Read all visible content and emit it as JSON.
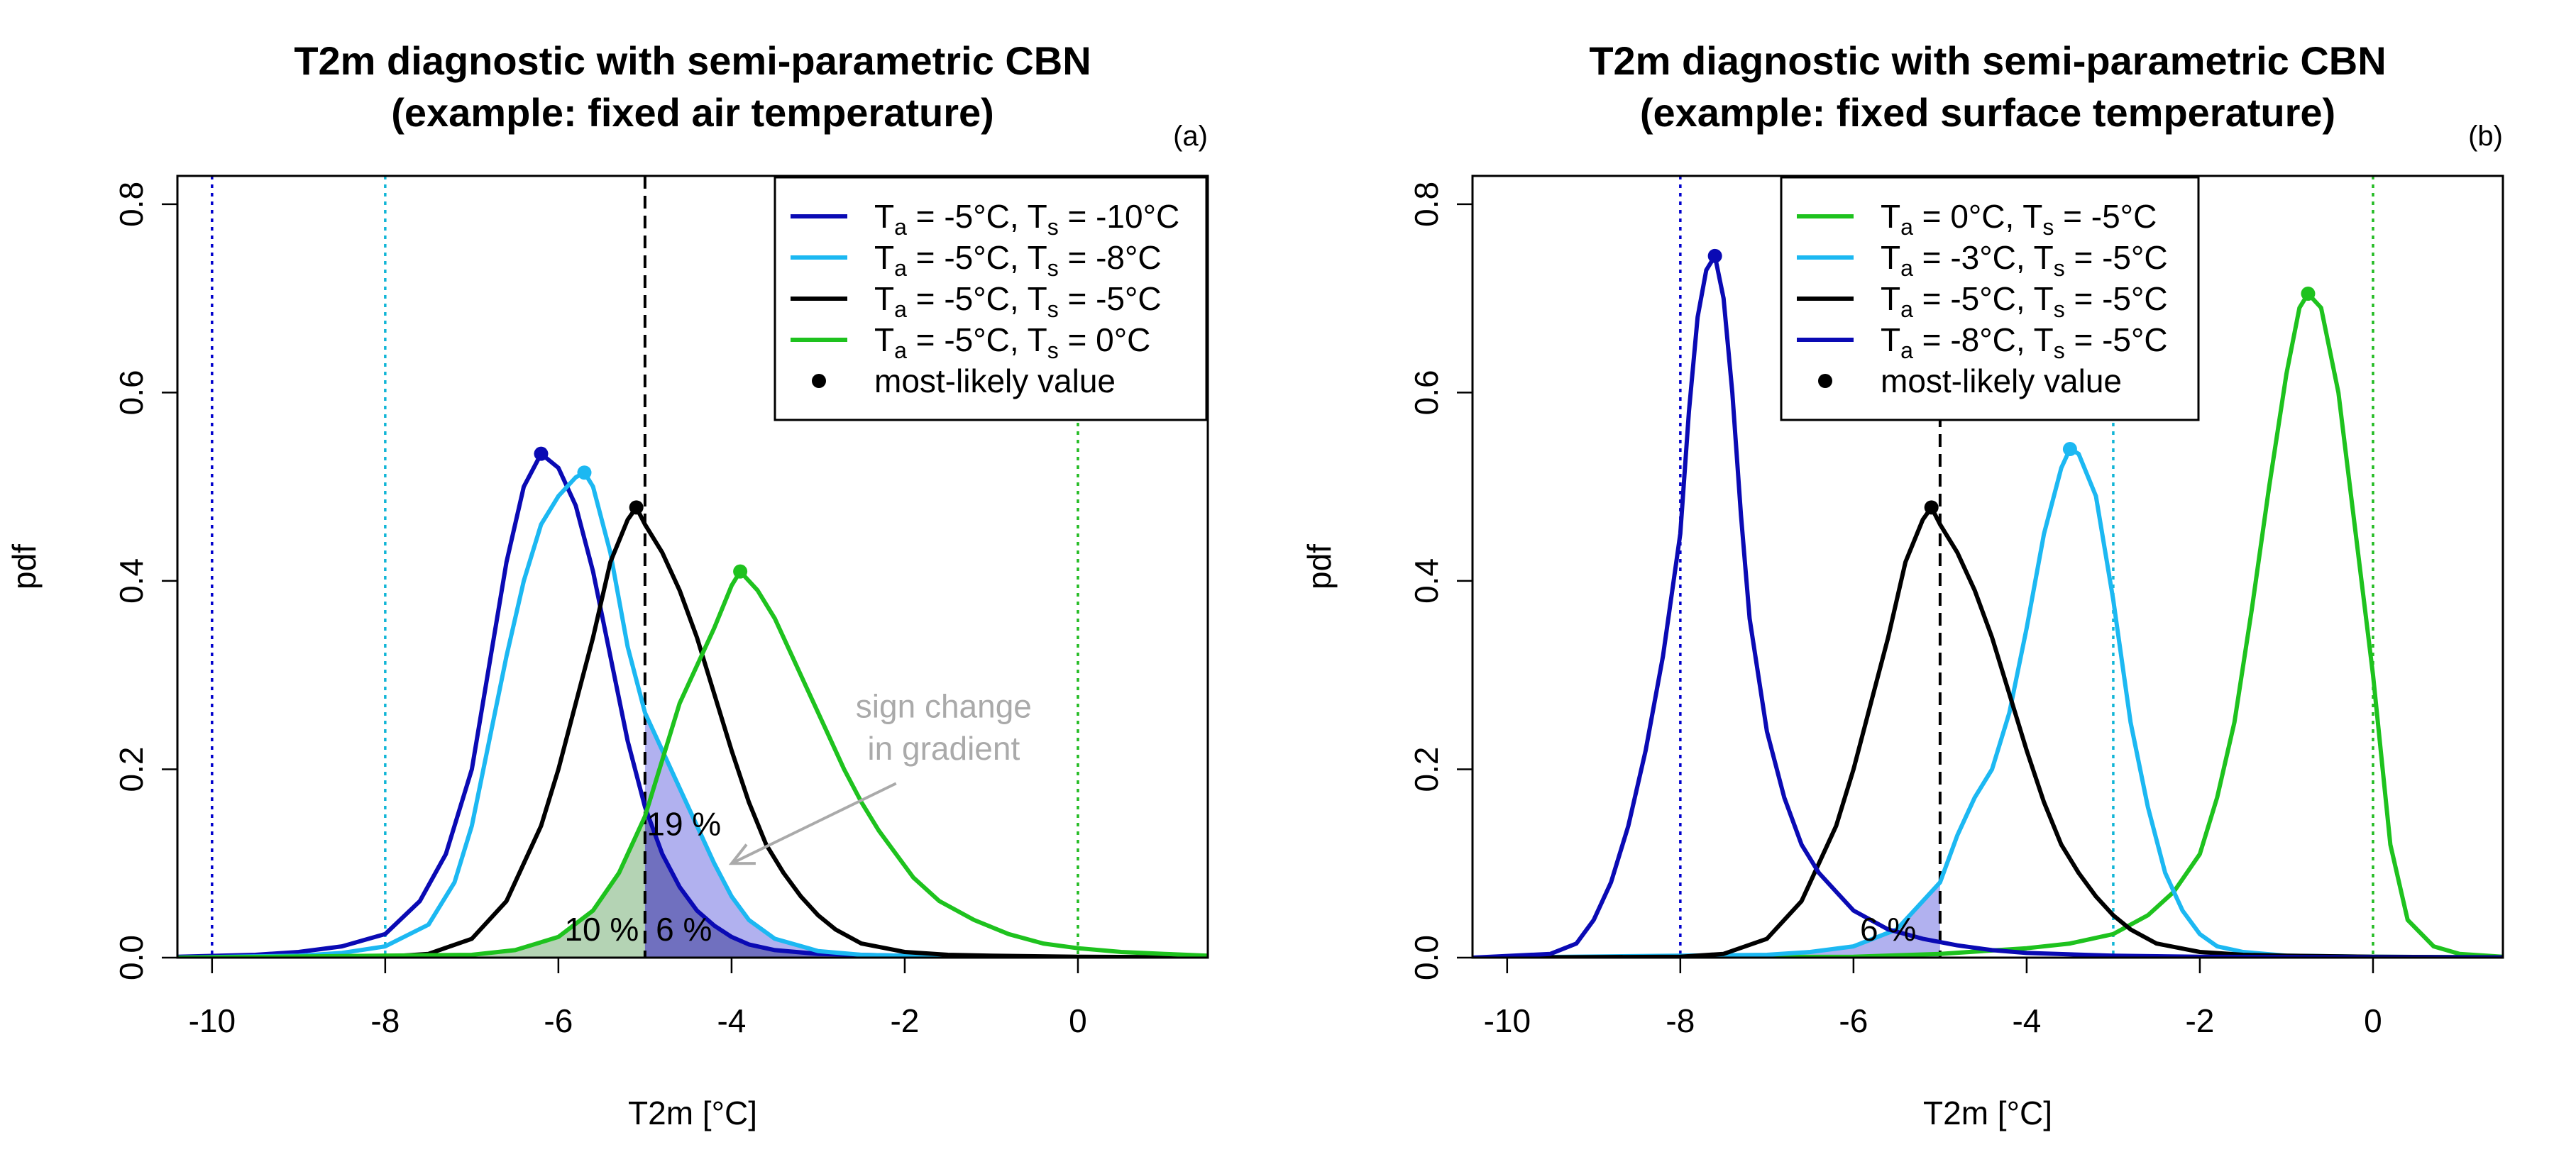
{
  "chart_data": [
    {
      "type": "line",
      "panel_label": "(a)",
      "title": "T2m diagnostic with semi-parametric CBN",
      "subtitle": "(example: fixed air temperature)",
      "xlabel": "T2m [°C]",
      "ylabel": "pdf",
      "xlim": [
        -10.4,
        1.5
      ],
      "ylim": [
        0,
        0.83
      ],
      "xticks": [
        -10,
        -8,
        -6,
        -4,
        -2,
        0
      ],
      "yticks": [
        0.0,
        0.2,
        0.4,
        0.6,
        0.8
      ],
      "xtick_labels": [
        "-10",
        "-8",
        "-6",
        "-4",
        "-2",
        "0"
      ],
      "ytick_labels": [
        "0.0",
        "0.2",
        "0.4",
        "0.6",
        "0.8"
      ],
      "vlines": [
        {
          "x": -10,
          "color": "#0000cc",
          "style": "dotted"
        },
        {
          "x": -8,
          "color": "#11b5d6",
          "style": "dotted"
        },
        {
          "x": -5,
          "color": "#000000",
          "style": "dashed"
        },
        {
          "x": 0,
          "color": "#22bb22",
          "style": "dotted"
        }
      ],
      "legend": [
        {
          "pre": "T",
          "sub1": "a",
          "mid": " = -5°C, T",
          "sub2": "s",
          "post": " = -10°C",
          "color": "#0a0ab4",
          "kind": "line"
        },
        {
          "pre": "T",
          "sub1": "a",
          "mid": " = -5°C, T",
          "sub2": "s",
          "post": " = -8°C",
          "color": "#1cb8f2",
          "kind": "line"
        },
        {
          "pre": "T",
          "sub1": "a",
          "mid": " = -5°C, T",
          "sub2": "s",
          "post": " = -5°C",
          "color": "#000000",
          "kind": "line"
        },
        {
          "pre": "T",
          "sub1": "a",
          "mid": " = -5°C, T",
          "sub2": "s",
          "post": " =  0°C",
          "color": "#1ec21e",
          "kind": "line"
        },
        {
          "text": "most-likely value",
          "color": "#000000",
          "kind": "point"
        }
      ],
      "series": [
        {
          "name": "Ta = -5°C, Ts = -10°C",
          "color": "#0a0ab4",
          "x": [
            -10.4,
            -9.5,
            -9,
            -8.5,
            -8,
            -7.6,
            -7.3,
            -7.0,
            -6.8,
            -6.6,
            -6.4,
            -6.2,
            -6.0,
            -5.8,
            -5.6,
            -5.4,
            -5.2,
            -5.0,
            -4.8,
            -4.6,
            -4.4,
            -4.2,
            -4.0,
            -3.8,
            -3.5,
            -3.0,
            -2.0,
            -1.0,
            0,
            1.5
          ],
          "y": [
            0.001,
            0.003,
            0.006,
            0.012,
            0.025,
            0.06,
            0.11,
            0.2,
            0.31,
            0.42,
            0.5,
            0.535,
            0.52,
            0.48,
            0.41,
            0.32,
            0.23,
            0.16,
            0.11,
            0.075,
            0.05,
            0.034,
            0.022,
            0.014,
            0.008,
            0.004,
            0.002,
            0.001,
            0.0005,
            0.0002
          ],
          "peak": [
            -6.2,
            0.535
          ]
        },
        {
          "name": "Ta = -5°C, Ts = -8°C",
          "color": "#1cb8f2",
          "x": [
            -10.4,
            -9,
            -8.5,
            -8,
            -7.5,
            -7.2,
            -7.0,
            -6.8,
            -6.6,
            -6.4,
            -6.2,
            -6.0,
            -5.8,
            -5.7,
            -5.6,
            -5.4,
            -5.2,
            -5.0,
            -4.8,
            -4.6,
            -4.4,
            -4.2,
            -4.0,
            -3.8,
            -3.5,
            -3.0,
            -2.5,
            -2.0,
            -1.0,
            0,
            1.5
          ],
          "y": [
            0,
            0.002,
            0.005,
            0.012,
            0.035,
            0.08,
            0.14,
            0.23,
            0.32,
            0.4,
            0.46,
            0.49,
            0.51,
            0.515,
            0.5,
            0.43,
            0.33,
            0.26,
            0.22,
            0.18,
            0.14,
            0.1,
            0.065,
            0.04,
            0.02,
            0.007,
            0.003,
            0.002,
            0.001,
            0.0005,
            0.0002
          ],
          "peak": [
            -5.7,
            0.515
          ]
        },
        {
          "name": "Ta = -5°C, Ts = -5°C",
          "color": "#000000",
          "x": [
            -10.4,
            -8,
            -7.5,
            -7.0,
            -6.6,
            -6.2,
            -6.0,
            -5.8,
            -5.6,
            -5.4,
            -5.2,
            -5.1,
            -5.0,
            -4.8,
            -4.6,
            -4.4,
            -4.2,
            -4.0,
            -3.8,
            -3.6,
            -3.4,
            -3.2,
            -3.0,
            -2.8,
            -2.5,
            -2.0,
            -1.5,
            -1.0,
            0,
            1.5
          ],
          "y": [
            0,
            0.001,
            0.004,
            0.02,
            0.06,
            0.14,
            0.2,
            0.27,
            0.34,
            0.42,
            0.465,
            0.478,
            0.46,
            0.43,
            0.39,
            0.34,
            0.28,
            0.22,
            0.165,
            0.12,
            0.09,
            0.065,
            0.045,
            0.03,
            0.015,
            0.006,
            0.003,
            0.002,
            0.001,
            0.0003
          ],
          "peak": [
            -5.1,
            0.478
          ]
        },
        {
          "name": "Ta = -5°C, Ts = 0°C",
          "color": "#1ec21e",
          "x": [
            -10.4,
            -7,
            -6.5,
            -6.0,
            -5.6,
            -5.3,
            -5.0,
            -4.8,
            -4.6,
            -4.4,
            -4.2,
            -4.0,
            -3.9,
            -3.7,
            -3.5,
            -3.3,
            -3.1,
            -2.9,
            -2.7,
            -2.5,
            -2.3,
            -2.1,
            -1.9,
            -1.6,
            -1.2,
            -0.8,
            -0.4,
            0,
            0.5,
            1.0,
            1.5
          ],
          "y": [
            0,
            0.003,
            0.008,
            0.022,
            0.05,
            0.09,
            0.15,
            0.21,
            0.27,
            0.31,
            0.35,
            0.395,
            0.41,
            0.39,
            0.36,
            0.32,
            0.28,
            0.24,
            0.2,
            0.165,
            0.135,
            0.11,
            0.085,
            0.06,
            0.04,
            0.025,
            0.015,
            0.01,
            0.006,
            0.004,
            0.002
          ],
          "peak": [
            -3.9,
            0.41
          ]
        }
      ],
      "shaded_regions": [
        {
          "series": "Ta = -5°C, Ts = 0°C",
          "from": -10.4,
          "to": -5,
          "color": "#6aa86a",
          "opacity": 0.5
        },
        {
          "series": "Ta = -5°C, Ts = -8°C",
          "from": -5,
          "to": 1.5,
          "color": "#6464e0",
          "opacity": 0.5
        },
        {
          "series": "Ta = -5°C, Ts = -10°C",
          "from": -5,
          "to": 1.5,
          "color": "#303090",
          "opacity": 0.5
        }
      ],
      "annotations": [
        {
          "text": "19 %",
          "x": -4.55,
          "y": 0.13
        },
        {
          "text": "10 %",
          "x": -5.5,
          "y": 0.018
        },
        {
          "text": "6 %",
          "x": -4.55,
          "y": 0.018
        },
        {
          "text": "sign change",
          "x": -1.55,
          "y": 0.255,
          "color": "#aaaaaa"
        },
        {
          "text": "in gradient",
          "x": -1.55,
          "y": 0.21,
          "color": "#aaaaaa"
        }
      ],
      "arrows": [
        {
          "from": [
            -2.1,
            0.185
          ],
          "to": [
            -4.0,
            0.1
          ],
          "color": "#aaaaaa"
        }
      ]
    },
    {
      "type": "line",
      "panel_label": "(b)",
      "title": "T2m diagnostic with semi-parametric CBN",
      "subtitle": "(example: fixed surface temperature)",
      "xlabel": "T2m [°C]",
      "ylabel": "pdf",
      "xlim": [
        -10.4,
        1.5
      ],
      "ylim": [
        0,
        0.83
      ],
      "xticks": [
        -10,
        -8,
        -6,
        -4,
        -2,
        0
      ],
      "yticks": [
        0.0,
        0.2,
        0.4,
        0.6,
        0.8
      ],
      "xtick_labels": [
        "-10",
        "-8",
        "-6",
        "-4",
        "-2",
        "0"
      ],
      "ytick_labels": [
        "0.0",
        "0.2",
        "0.4",
        "0.6",
        "0.8"
      ],
      "vlines": [
        {
          "x": -8,
          "color": "#0000cc",
          "style": "dotted"
        },
        {
          "x": -5,
          "color": "#000000",
          "style": "dashed"
        },
        {
          "x": -3,
          "color": "#11b5d6",
          "style": "dotted"
        },
        {
          "x": 0,
          "color": "#22bb22",
          "style": "dotted"
        }
      ],
      "legend": [
        {
          "pre": "T",
          "sub1": "a",
          "mid": " =  0°C, T",
          "sub2": "s",
          "post": " = -5°C",
          "color": "#1ec21e",
          "kind": "line"
        },
        {
          "pre": "T",
          "sub1": "a",
          "mid": " = -3°C, T",
          "sub2": "s",
          "post": " = -5°C",
          "color": "#1cb8f2",
          "kind": "line"
        },
        {
          "pre": "T",
          "sub1": "a",
          "mid": " = -5°C, T",
          "sub2": "s",
          "post": " = -5°C",
          "color": "#000000",
          "kind": "line"
        },
        {
          "pre": "T",
          "sub1": "a",
          "mid": " = -8°C, T",
          "sub2": "s",
          "post": " = -5°C",
          "color": "#0a0ab4",
          "kind": "line"
        },
        {
          "text": "most-likely value",
          "color": "#000000",
          "kind": "point"
        }
      ],
      "series": [
        {
          "name": "Ta = 0°C, Ts = -5°C",
          "color": "#1ec21e",
          "x": [
            -10.4,
            -6,
            -5,
            -4,
            -3.5,
            -3,
            -2.6,
            -2.3,
            -2.0,
            -1.8,
            -1.6,
            -1.4,
            -1.2,
            -1.0,
            -0.85,
            -0.75,
            -0.6,
            -0.4,
            -0.2,
            0,
            0.2,
            0.4,
            0.7,
            1.0,
            1.5
          ],
          "y": [
            0,
            0.001,
            0.004,
            0.01,
            0.015,
            0.025,
            0.045,
            0.07,
            0.11,
            0.17,
            0.25,
            0.37,
            0.5,
            0.62,
            0.69,
            0.705,
            0.69,
            0.6,
            0.45,
            0.3,
            0.12,
            0.04,
            0.012,
            0.004,
            0.001
          ],
          "peak": [
            -0.75,
            0.705
          ]
        },
        {
          "name": "Ta = -3°C, Ts = -5°C",
          "color": "#1cb8f2",
          "x": [
            -10.4,
            -7,
            -6.5,
            -6.0,
            -5.5,
            -5.0,
            -4.8,
            -4.6,
            -4.4,
            -4.2,
            -4.0,
            -3.8,
            -3.6,
            -3.5,
            -3.4,
            -3.2,
            -3.0,
            -2.8,
            -2.6,
            -2.4,
            -2.2,
            -2.0,
            -1.8,
            -1.5,
            -1.0,
            0,
            1.5
          ],
          "y": [
            0,
            0.003,
            0.006,
            0.012,
            0.03,
            0.08,
            0.13,
            0.17,
            0.2,
            0.26,
            0.35,
            0.45,
            0.52,
            0.54,
            0.535,
            0.49,
            0.38,
            0.25,
            0.16,
            0.09,
            0.05,
            0.025,
            0.012,
            0.006,
            0.002,
            0.001,
            0.0003
          ],
          "peak": [
            -3.5,
            0.54
          ]
        },
        {
          "name": "Ta = -5°C, Ts = -5°C",
          "color": "#000000",
          "x": [
            -10.4,
            -8,
            -7.5,
            -7.0,
            -6.6,
            -6.2,
            -6.0,
            -5.8,
            -5.6,
            -5.4,
            -5.2,
            -5.1,
            -5.0,
            -4.8,
            -4.6,
            -4.4,
            -4.2,
            -4.0,
            -3.8,
            -3.6,
            -3.4,
            -3.2,
            -3.0,
            -2.8,
            -2.5,
            -2.0,
            -1.5,
            -1.0,
            0,
            1.5
          ],
          "y": [
            0,
            0.001,
            0.004,
            0.02,
            0.06,
            0.14,
            0.2,
            0.27,
            0.34,
            0.42,
            0.465,
            0.478,
            0.46,
            0.43,
            0.39,
            0.34,
            0.28,
            0.22,
            0.165,
            0.12,
            0.09,
            0.065,
            0.045,
            0.03,
            0.015,
            0.006,
            0.003,
            0.002,
            0.001,
            0.0003
          ],
          "peak": [
            -5.1,
            0.478
          ]
        },
        {
          "name": "Ta = -8°C, Ts = -5°C",
          "color": "#0a0ab4",
          "x": [
            -10.4,
            -9.5,
            -9.2,
            -9.0,
            -8.8,
            -8.6,
            -8.4,
            -8.2,
            -8.0,
            -7.9,
            -7.8,
            -7.7,
            -7.6,
            -7.5,
            -7.4,
            -7.3,
            -7.2,
            -7.0,
            -6.8,
            -6.6,
            -6.4,
            -6.2,
            -6.0,
            -5.6,
            -5.2,
            -4.8,
            -4.4,
            -4.0,
            -3.0,
            -2.0,
            0,
            1.5
          ],
          "y": [
            0,
            0.004,
            0.015,
            0.04,
            0.08,
            0.14,
            0.22,
            0.32,
            0.45,
            0.58,
            0.68,
            0.73,
            0.745,
            0.7,
            0.6,
            0.47,
            0.36,
            0.24,
            0.17,
            0.12,
            0.09,
            0.07,
            0.05,
            0.03,
            0.02,
            0.013,
            0.008,
            0.005,
            0.002,
            0.001,
            0.0003,
            0.0001
          ],
          "peak": [
            -7.6,
            0.745
          ]
        }
      ],
      "shaded_regions": [
        {
          "series": "Ta = -3°C, Ts = -5°C",
          "from": -10.4,
          "to": -5,
          "color": "#6464e0",
          "opacity": 0.5
        },
        {
          "series": "Ta = 0°C, Ts = -5°C",
          "from": -10.4,
          "to": -5,
          "color": "#6aa86a",
          "opacity": 0.5
        }
      ],
      "annotations": [
        {
          "text": "6 %",
          "x": -5.6,
          "y": 0.018
        }
      ],
      "arrows": []
    }
  ]
}
